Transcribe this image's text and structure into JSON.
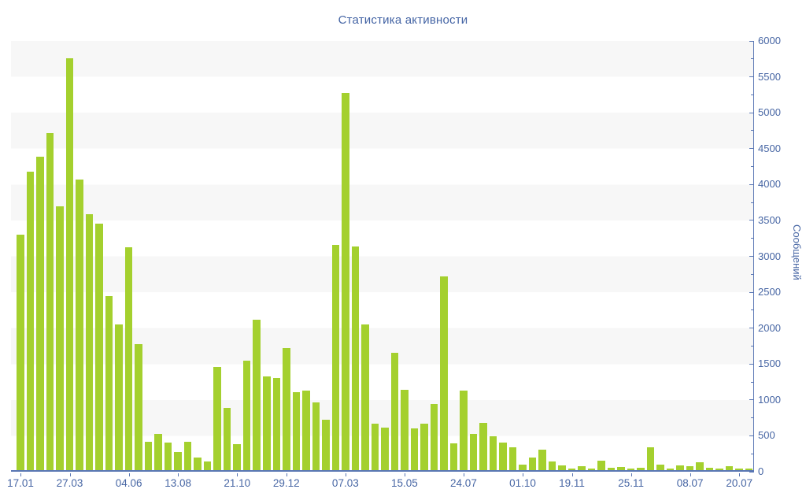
{
  "title": "Статистика активности",
  "y_axis_title": "Сообщений",
  "chart_data": {
    "type": "bar",
    "title": "Статистика активности",
    "xlabel": "",
    "ylabel": "Сообщений",
    "ylim": [
      0,
      6000
    ],
    "y_major_step": 500,
    "y_minor_step": 250,
    "grid": "alternating horizontal bands of 500 units, #f7f7f7 / #ffffff",
    "legend_position": "none",
    "bar_color": "#a4d02e",
    "axis_color": "#5976b4",
    "label_color": "#4766a4",
    "tick_labels": [
      "17.01",
      "27.03",
      "04.06",
      "13.08",
      "21.10",
      "29.12",
      "07.03",
      "15.05",
      "24.07",
      "01.10",
      "19.11",
      "25.11",
      "08.07",
      "20.07"
    ],
    "tick_indices": [
      0,
      5,
      11,
      16,
      22,
      27,
      33,
      39,
      45,
      51,
      56,
      62,
      68,
      73
    ],
    "values": [
      3280,
      4160,
      4365,
      4690,
      3680,
      5740,
      4050,
      3570,
      3430,
      2420,
      2030,
      3100,
      1760,
      400,
      510,
      385,
      255,
      400,
      180,
      120,
      1440,
      865,
      365,
      1530,
      2100,
      1310,
      1280,
      1700,
      1090,
      1105,
      945,
      705,
      3140,
      5250,
      3110,
      2030,
      650,
      595,
      1630,
      1120,
      585,
      650,
      925,
      2700,
      370,
      1110,
      510,
      660,
      475,
      385,
      320,
      80,
      180,
      290,
      120,
      70,
      25,
      60,
      20,
      135,
      35,
      45,
      25,
      35,
      320,
      80,
      25,
      70,
      50,
      105,
      33,
      20,
      60,
      18,
      25
    ]
  }
}
